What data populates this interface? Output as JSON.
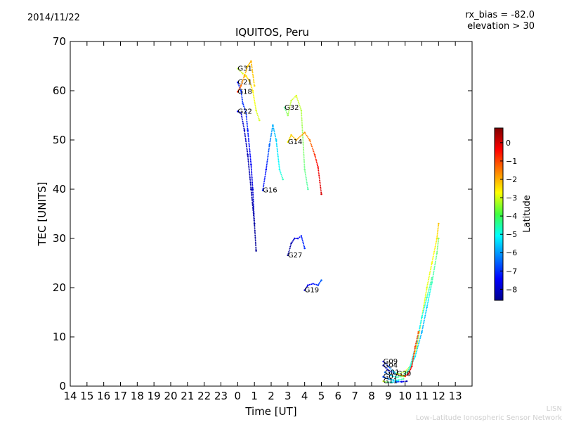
{
  "header": {
    "date": "2014/11/22",
    "rx_bias": "rx_bias = -82.0",
    "elevation": "elevation > 30"
  },
  "footer": {
    "acronym": "LISN",
    "network": "Low-Latitude Ionospheric Sensor Network"
  },
  "chart_data": {
    "type": "scatter",
    "title": "IQUITOS, Peru",
    "xlabel": "Time [UT]",
    "ylabel": "TEC [UNITS]",
    "xlim": [
      14,
      38
    ],
    "ylim": [
      0,
      70
    ],
    "yticks": [
      0,
      10,
      20,
      30,
      40,
      50,
      60,
      70
    ],
    "xticks": [
      {
        "v": 14,
        "label": "14"
      },
      {
        "v": 15,
        "label": "15"
      },
      {
        "v": 16,
        "label": "16"
      },
      {
        "v": 17,
        "label": "17"
      },
      {
        "v": 18,
        "label": "18"
      },
      {
        "v": 19,
        "label": "19"
      },
      {
        "v": 20,
        "label": "20"
      },
      {
        "v": 21,
        "label": "21"
      },
      {
        "v": 22,
        "label": "22"
      },
      {
        "v": 23,
        "label": "23"
      },
      {
        "v": 24,
        "label": "0"
      },
      {
        "v": 25,
        "label": "1"
      },
      {
        "v": 26,
        "label": "2"
      },
      {
        "v": 27,
        "label": "3"
      },
      {
        "v": 28,
        "label": "4"
      },
      {
        "v": 29,
        "label": "5"
      },
      {
        "v": 30,
        "label": "6"
      },
      {
        "v": 31,
        "label": "7"
      },
      {
        "v": 32,
        "label": "8"
      },
      {
        "v": 33,
        "label": "9"
      },
      {
        "v": 34,
        "label": "10"
      },
      {
        "v": 35,
        "label": "11"
      },
      {
        "v": 36,
        "label": "12"
      },
      {
        "v": 37,
        "label": "13"
      }
    ],
    "colorbar": {
      "label": "Latitude",
      "min": -8.6,
      "max": 0.8,
      "ticks": [
        {
          "v": 0,
          "label": "0"
        },
        {
          "v": -1,
          "label": "−1"
        },
        {
          "v": -2,
          "label": "−2"
        },
        {
          "v": -3,
          "label": "−3"
        },
        {
          "v": -4,
          "label": "−4"
        },
        {
          "v": -5,
          "label": "−5"
        },
        {
          "v": -6,
          "label": "−6"
        },
        {
          "v": -7,
          "label": "−7"
        },
        {
          "v": -8,
          "label": "−8"
        }
      ]
    },
    "series": [
      {
        "name": "G31",
        "label_at": [
          24.0,
          64.5
        ],
        "points": [
          [
            24.0,
            64.5,
            -3.4
          ],
          [
            24.3,
            63.5,
            -3.0
          ],
          [
            24.5,
            63.0,
            -2.5
          ],
          [
            24.7,
            62.0,
            -2.2
          ],
          [
            24.9,
            60.0,
            -2.6
          ],
          [
            25.1,
            56.0,
            -3.0
          ],
          [
            25.3,
            54.0,
            -3.1
          ]
        ]
      },
      {
        "name": "G21",
        "label_at": [
          24.0,
          61.7
        ],
        "points": [
          [
            24.0,
            61.7,
            -7.2
          ],
          [
            24.2,
            60.0,
            -7.0
          ],
          [
            24.3,
            57.5,
            -7.0
          ],
          [
            24.5,
            55.5,
            -7.0
          ],
          [
            24.6,
            52.0,
            -7.2
          ],
          [
            24.8,
            45.0,
            -7.5
          ],
          [
            24.9,
            40.0,
            -7.8
          ],
          [
            25.0,
            33.0,
            -8.0
          ]
        ]
      },
      {
        "name": "G18",
        "label_at": [
          24.0,
          59.8
        ],
        "points": [
          [
            24.0,
            59.8,
            -0.7
          ],
          [
            24.2,
            61.0,
            -1.4
          ],
          [
            24.4,
            63.0,
            -2.0
          ],
          [
            24.6,
            65.0,
            -2.2
          ],
          [
            24.8,
            66.0,
            -2.0
          ],
          [
            25.0,
            61.0,
            -2.4
          ]
        ]
      },
      {
        "name": "G22",
        "label_at": [
          24.0,
          55.8
        ],
        "points": [
          [
            24.0,
            55.8,
            -7.5
          ],
          [
            24.2,
            55.5,
            -7.8
          ],
          [
            24.4,
            52.0,
            -8.0
          ],
          [
            24.6,
            47.0,
            -8.1
          ],
          [
            24.8,
            40.0,
            -8.2
          ],
          [
            25.0,
            33.0,
            -8.3
          ],
          [
            25.1,
            27.5,
            -8.4
          ]
        ]
      },
      {
        "name": "G32",
        "label_at": [
          26.8,
          56.6
        ],
        "points": [
          [
            26.8,
            56.6,
            -4.2
          ],
          [
            27.0,
            55.0,
            -3.6
          ],
          [
            27.2,
            58.0,
            -3.2
          ],
          [
            27.5,
            59.0,
            -3.0
          ],
          [
            27.8,
            56.0,
            -3.4
          ],
          [
            28.0,
            44.0,
            -4.0
          ],
          [
            28.2,
            40.0,
            -4.3
          ]
        ]
      },
      {
        "name": "G14",
        "label_at": [
          27.0,
          49.6
        ],
        "points": [
          [
            27.0,
            49.6,
            -2.6
          ],
          [
            27.2,
            51.0,
            -2.3
          ],
          [
            27.5,
            50.0,
            -2.0
          ],
          [
            28.0,
            51.5,
            -1.8
          ],
          [
            28.3,
            50.0,
            -1.5
          ],
          [
            28.6,
            47.0,
            -0.8
          ],
          [
            28.8,
            44.5,
            -0.3
          ],
          [
            29.0,
            39.0,
            0.0
          ]
        ]
      },
      {
        "name": "G16",
        "label_at": [
          25.5,
          39.8
        ],
        "points": [
          [
            25.5,
            39.8,
            -7.2
          ],
          [
            25.7,
            44.0,
            -7.3
          ],
          [
            25.9,
            49.0,
            -6.5
          ],
          [
            26.1,
            53.0,
            -5.8
          ],
          [
            26.3,
            50.0,
            -5.5
          ],
          [
            26.5,
            44.0,
            -5.0
          ],
          [
            26.7,
            42.0,
            -4.5
          ]
        ]
      },
      {
        "name": "G27",
        "label_at": [
          27.0,
          26.6
        ],
        "points": [
          [
            27.0,
            26.6,
            -8.4
          ],
          [
            27.2,
            29.0,
            -8.2
          ],
          [
            27.4,
            30.0,
            -7.8
          ],
          [
            27.6,
            30.0,
            -7.5
          ],
          [
            27.8,
            30.5,
            -7.2
          ],
          [
            28.0,
            28.0,
            -7.0
          ]
        ]
      },
      {
        "name": "G19",
        "label_at": [
          28.0,
          19.5
        ],
        "points": [
          [
            28.0,
            19.5,
            -8.0
          ],
          [
            28.2,
            20.5,
            -7.6
          ],
          [
            28.5,
            20.8,
            -7.3
          ],
          [
            28.8,
            20.5,
            -7.0
          ],
          [
            29.0,
            21.5,
            -6.5
          ]
        ]
      },
      {
        "name": "G09",
        "label_at": [
          32.7,
          5.0
        ],
        "points": [
          [
            32.7,
            5.0,
            -7.5
          ],
          [
            33.0,
            4.0,
            -6.8
          ],
          [
            33.3,
            3.0,
            -5.5
          ],
          [
            33.6,
            2.5,
            -4.0
          ],
          [
            34.0,
            3.0,
            -3.0
          ],
          [
            34.3,
            4.0,
            -2.5
          ],
          [
            34.7,
            8.0,
            -2.5
          ],
          [
            35.0,
            14.0,
            -2.8
          ],
          [
            35.3,
            20.0,
            -3.0
          ],
          [
            35.6,
            25.0,
            -2.8
          ],
          [
            35.9,
            30.0,
            -2.5
          ],
          [
            36.0,
            33.0,
            -2.2
          ]
        ]
      },
      {
        "name": "G04",
        "label_at": [
          32.7,
          4.2
        ],
        "points": [
          [
            32.7,
            4.2,
            -8.2
          ],
          [
            33.0,
            3.2,
            -7.5
          ],
          [
            33.4,
            2.5,
            -6.2
          ],
          [
            33.8,
            2.0,
            -5.0
          ],
          [
            34.2,
            3.0,
            -4.5
          ],
          [
            34.6,
            6.0,
            -5.2
          ],
          [
            35.0,
            11.0,
            -5.8
          ],
          [
            35.3,
            16.0,
            -5.5
          ],
          [
            35.6,
            21.0,
            -4.5
          ],
          [
            35.9,
            27.0,
            -4.0
          ],
          [
            36.0,
            30.0,
            -3.8
          ]
        ]
      },
      {
        "name": "G01",
        "label_at": [
          32.8,
          2.8
        ],
        "points": [
          [
            32.8,
            2.8,
            -6.5
          ],
          [
            33.1,
            2.2,
            -5.8
          ],
          [
            33.5,
            1.8,
            -4.5
          ],
          [
            33.9,
            2.0,
            -3.5
          ],
          [
            34.3,
            4.0,
            -4.8
          ],
          [
            34.7,
            9.0,
            -5.5
          ],
          [
            35.0,
            14.0,
            -5.0
          ],
          [
            35.3,
            18.0,
            -4.6
          ],
          [
            35.6,
            22.0,
            -4.2
          ]
        ]
      },
      {
        "name": "G30",
        "label_at": [
          33.5,
          2.5
        ],
        "points": [
          [
            33.5,
            2.5,
            -2.8
          ],
          [
            33.8,
            2.2,
            -1.8
          ],
          [
            34.0,
            2.0,
            -0.8
          ],
          [
            34.2,
            2.5,
            0.0
          ],
          [
            34.4,
            4.0,
            -0.5
          ],
          [
            34.6,
            8.0,
            -1.0
          ],
          [
            34.8,
            11.0,
            -1.2
          ]
        ]
      },
      {
        "name": "G07",
        "label_at": [
          32.7,
          1.9
        ],
        "points": [
          [
            32.7,
            1.9,
            -6.8
          ],
          [
            33.0,
            1.5,
            -6.2
          ],
          [
            33.3,
            1.2,
            -5.5
          ],
          [
            33.6,
            1.2,
            -4.8
          ],
          [
            33.9,
            1.5,
            -4.2
          ]
        ]
      },
      {
        "name": "G11",
        "label_at": [
          32.7,
          1.0
        ],
        "points": [
          [
            32.7,
            1.0,
            -3.0
          ],
          [
            32.9,
            0.8,
            -4.0
          ],
          [
            33.2,
            0.8,
            -5.0
          ],
          [
            33.5,
            0.9,
            -6.5
          ],
          [
            33.8,
            0.9,
            -7.6
          ],
          [
            34.1,
            1.0,
            -8.2
          ]
        ]
      }
    ]
  }
}
